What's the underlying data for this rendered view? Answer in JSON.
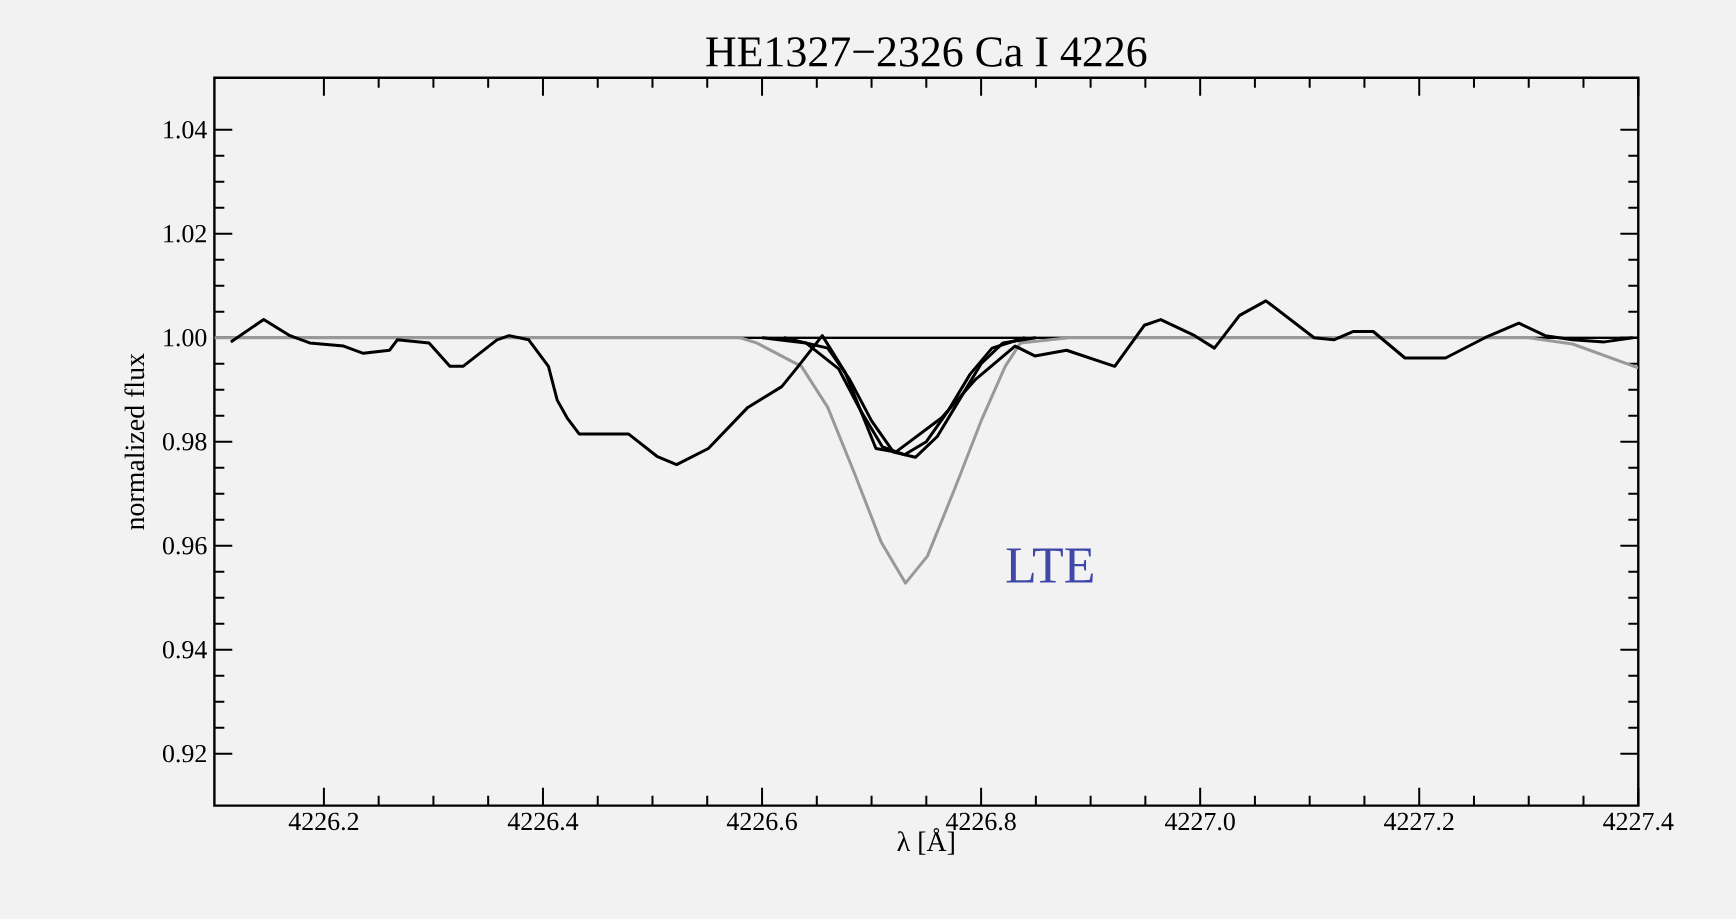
{
  "chart_data": {
    "type": "line",
    "title": "HE1327−2326 Ca I 4226",
    "xlabel": "λ [Å]",
    "ylabel": "normalized flux",
    "xlim": [
      4226.1,
      4227.4
    ],
    "ylim": [
      0.91,
      1.05
    ],
    "xticks": [
      {
        "value": 4226.2,
        "label": "4226.2"
      },
      {
        "value": 4226.4,
        "label": "4226.4"
      },
      {
        "value": 4226.6,
        "label": "4226.6"
      },
      {
        "value": 4226.8,
        "label": "4226.8"
      },
      {
        "value": 4227.0,
        "label": "4227.0"
      },
      {
        "value": 4227.2,
        "label": "4227.2"
      },
      {
        "value": 4227.4,
        "label": "4227.4"
      }
    ],
    "yticks": [
      {
        "value": 0.92,
        "label": "0.92"
      },
      {
        "value": 0.94,
        "label": "0.94"
      },
      {
        "value": 0.96,
        "label": "0.96"
      },
      {
        "value": 0.98,
        "label": "0.98"
      },
      {
        "value": 1.0,
        "label": "1.00"
      },
      {
        "value": 1.02,
        "label": "1.02"
      },
      {
        "value": 1.04,
        "label": "1.04"
      }
    ],
    "grid": false,
    "marker": "none",
    "line_style": "solid",
    "ref_lines": [
      {
        "axis": "y",
        "value": 1.0,
        "color": "#000000"
      }
    ],
    "annotations": [
      "LTE"
    ],
    "series": [
      {
        "color": "#999999",
        "x": [
          4226.1,
          4226.58,
          4226.595,
          4226.636,
          4226.66,
          4226.685,
          4226.709,
          4226.731,
          4226.751,
          4226.776,
          4226.8,
          4226.822,
          4226.836,
          4226.88,
          4227.3,
          4227.34,
          4227.4
        ],
        "values": [
          1.0,
          1.0,
          0.999,
          0.9945,
          0.9866,
          0.9736,
          0.9606,
          0.9528,
          0.958,
          0.971,
          0.984,
          0.9945,
          0.999,
          1.0,
          1.0,
          0.9988,
          0.9942
        ]
      },
      {
        "color": "#000000",
        "x": [
          4226.6,
          4226.64,
          4226.67,
          4226.69,
          4226.71,
          4226.73,
          4226.75,
          4226.77,
          4226.79,
          4226.81,
          4226.84
        ],
        "values": [
          1.0,
          0.999,
          0.994,
          0.986,
          0.979,
          0.9775,
          0.98,
          0.986,
          0.993,
          0.998,
          1.0
        ]
      },
      {
        "color": "#000000",
        "x": [
          4226.62,
          4226.66,
          4226.68,
          4226.7,
          4226.72,
          4226.74,
          4226.76,
          4226.78,
          4226.8,
          4226.82,
          4226.85
        ],
        "values": [
          1.0,
          0.998,
          0.992,
          0.984,
          0.978,
          0.977,
          0.981,
          0.988,
          0.995,
          0.999,
          1.0
        ]
      },
      {
        "color": "#000000",
        "x": [
          4226.115,
          4226.145,
          4226.169,
          4226.187,
          4226.218,
          4226.236,
          4226.26,
          4226.267,
          4226.296,
          4226.315,
          4226.327,
          4226.358,
          4226.369,
          4226.387,
          4226.405,
          4226.413,
          4226.422,
          4226.433,
          4226.478,
          4226.504,
          4226.522,
          4226.551,
          4226.587,
          4226.618,
          4226.633,
          4226.655,
          4226.676,
          4226.704,
          4226.722,
          4226.764,
          4226.795,
          4226.831,
          4226.849,
          4226.878,
          4226.922,
          4226.949,
          4226.964,
          4226.995,
          4227.013,
          4227.036,
          4227.06,
          4227.104,
          4227.122,
          4227.14,
          4227.158,
          4227.187,
          4227.224,
          4227.26,
          4227.291,
          4227.315,
          4227.34,
          4227.369,
          4227.395
        ],
        "values": [
          0.9992,
          1.0035,
          1.0004,
          0.999,
          0.9984,
          0.997,
          0.9976,
          0.9996,
          0.999,
          0.9945,
          0.9945,
          0.9996,
          1.0004,
          0.9996,
          0.9945,
          0.988,
          0.9846,
          0.9815,
          0.9815,
          0.9772,
          0.9756,
          0.9787,
          0.9866,
          0.9906,
          0.9945,
          1.0004,
          0.9933,
          0.9787,
          0.978,
          0.9846,
          0.992,
          0.9984,
          0.9965,
          0.9976,
          0.9945,
          1.0024,
          1.0035,
          1.0004,
          0.998,
          1.0043,
          1.0071,
          1.0,
          0.9996,
          1.0012,
          1.0012,
          0.9961,
          0.9961,
          1.0,
          1.0028,
          1.0004,
          0.9996,
          0.9992,
          1.0
        ]
      }
    ]
  }
}
